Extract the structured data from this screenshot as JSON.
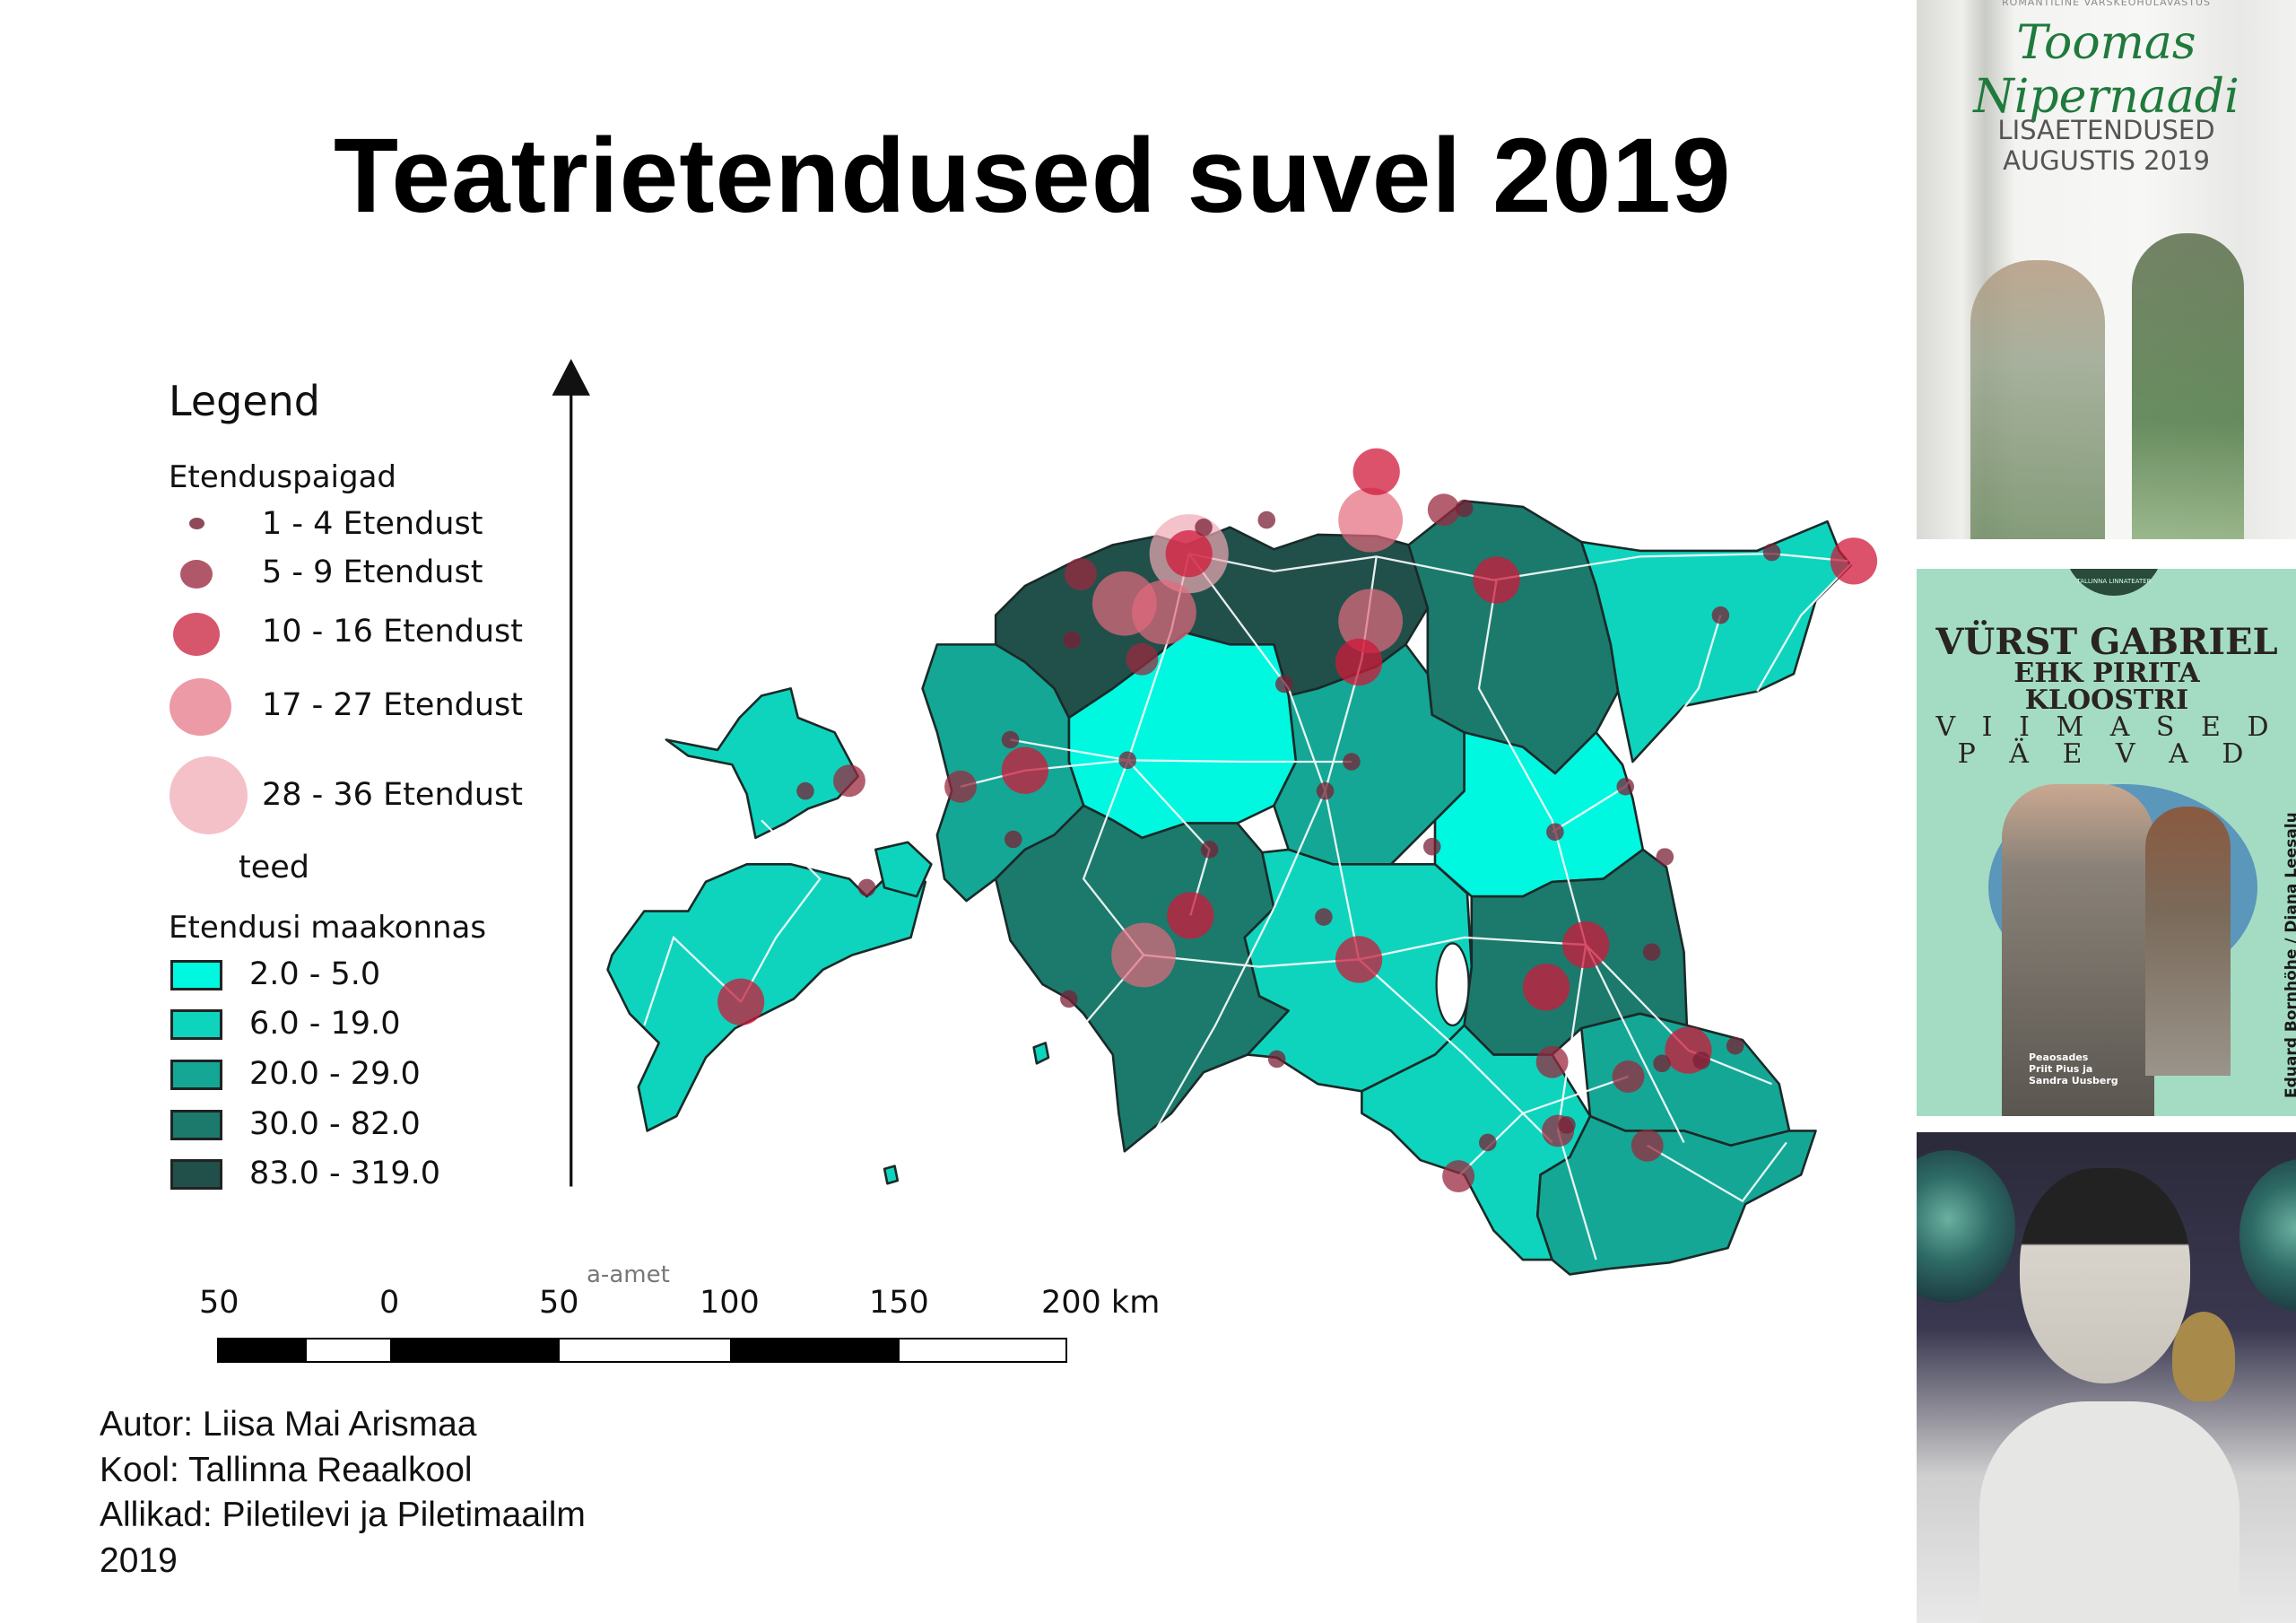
{
  "title": "Teatrietendused suvel 2019",
  "legend": {
    "title": "Legend",
    "points_heading": "Etenduspaigad",
    "point_classes": [
      {
        "label": "1 - 4 Etendust",
        "color": "#8f4a5a"
      },
      {
        "label": "5 - 9 Etendust",
        "color": "#b0586a"
      },
      {
        "label": "10 - 16 Etendust",
        "color": "#d6566c"
      },
      {
        "label": "17 - 27 Etendust",
        "color": "#ec9aa6"
      },
      {
        "label": "28 - 36 Etendust",
        "color": "#f4c1c9"
      }
    ],
    "roads_label": "teed",
    "county_heading": "Etendusi maakonnas",
    "county_classes": [
      {
        "label": "2.0 - 5.0",
        "color": "#00f7e0"
      },
      {
        "label": "6.0 - 19.0",
        "color": "#0fd4bd"
      },
      {
        "label": "20.0 - 29.0",
        "color": "#14a795"
      },
      {
        "label": "30.0 - 82.0",
        "color": "#1b7a6c"
      },
      {
        "label": "83.0 - 319.0",
        "color": "#21504a"
      }
    ]
  },
  "map_credit": "a-amet",
  "scale_bar": {
    "labels": [
      "50",
      "0",
      "50",
      "100",
      "150",
      "200 km"
    ]
  },
  "credits": {
    "author": "Autor: Liisa Mai Arismaa",
    "school": "Kool: Tallinna Reaalkool",
    "sources": "Allikad: Piletilevi ja Piletimaailm",
    "year": "2019"
  },
  "posters": [
    {
      "top_line": "ROMANTILINE VÄRSKEÕHULAVASTUS",
      "title": "Toomas Nipernaadi",
      "subtitle_1": "LISAETENDUSED",
      "subtitle_2": "AUGUSTIS 2019"
    },
    {
      "seal": "TALLINNA LINNATEATER",
      "title_1": "VÜRST GABRIEL",
      "title_2": "EHK PIRITA KLOOSTRI",
      "title_3": "V I I M A S E D",
      "title_4": "P Ä E V A D",
      "side": "Eduard Bornhöhe / Diana Leesalu",
      "cast_1": "Peaosades",
      "cast_2": "Priit Pius ja",
      "cast_3": "Sandra Uusberg"
    },
    {}
  ]
}
